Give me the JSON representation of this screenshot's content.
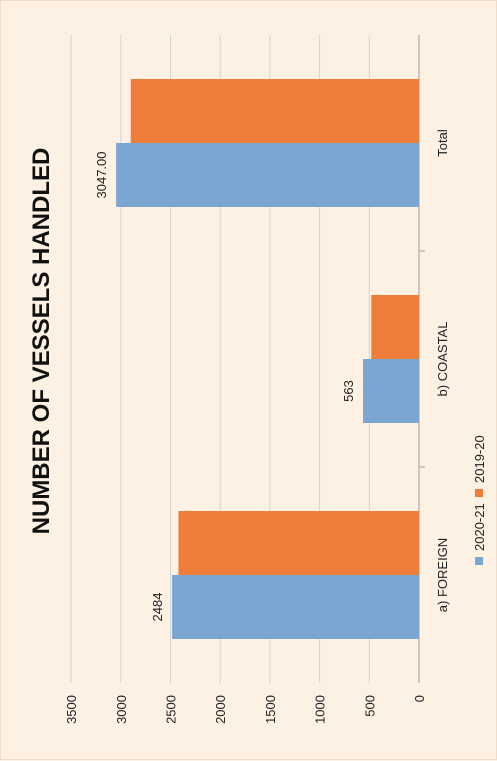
{
  "chart_data": {
    "type": "bar",
    "orientation": "horizontal",
    "rotated": "90deg-counterclockwise",
    "title": "NUMBER OF VESSELS HANDLED",
    "categories": [
      "a)  FOREIGN",
      "b)  COASTAL",
      "Total"
    ],
    "series": [
      {
        "name": "2020-21",
        "values": [
          2484,
          563,
          3047
        ],
        "data_labels": [
          "2484",
          "563",
          "3047.00"
        ],
        "color": "#7ba6d2"
      },
      {
        "name": "2019-20",
        "values": [
          2420,
          480,
          2900
        ],
        "color": "#ee7d3a"
      }
    ],
    "value_axis": {
      "min": 0,
      "max": 3500,
      "ticks": [
        "0",
        "500",
        "1000",
        "1500",
        "2000",
        "2500",
        "3000",
        "3500"
      ]
    },
    "grid": true,
    "legend_position": "bottom"
  }
}
